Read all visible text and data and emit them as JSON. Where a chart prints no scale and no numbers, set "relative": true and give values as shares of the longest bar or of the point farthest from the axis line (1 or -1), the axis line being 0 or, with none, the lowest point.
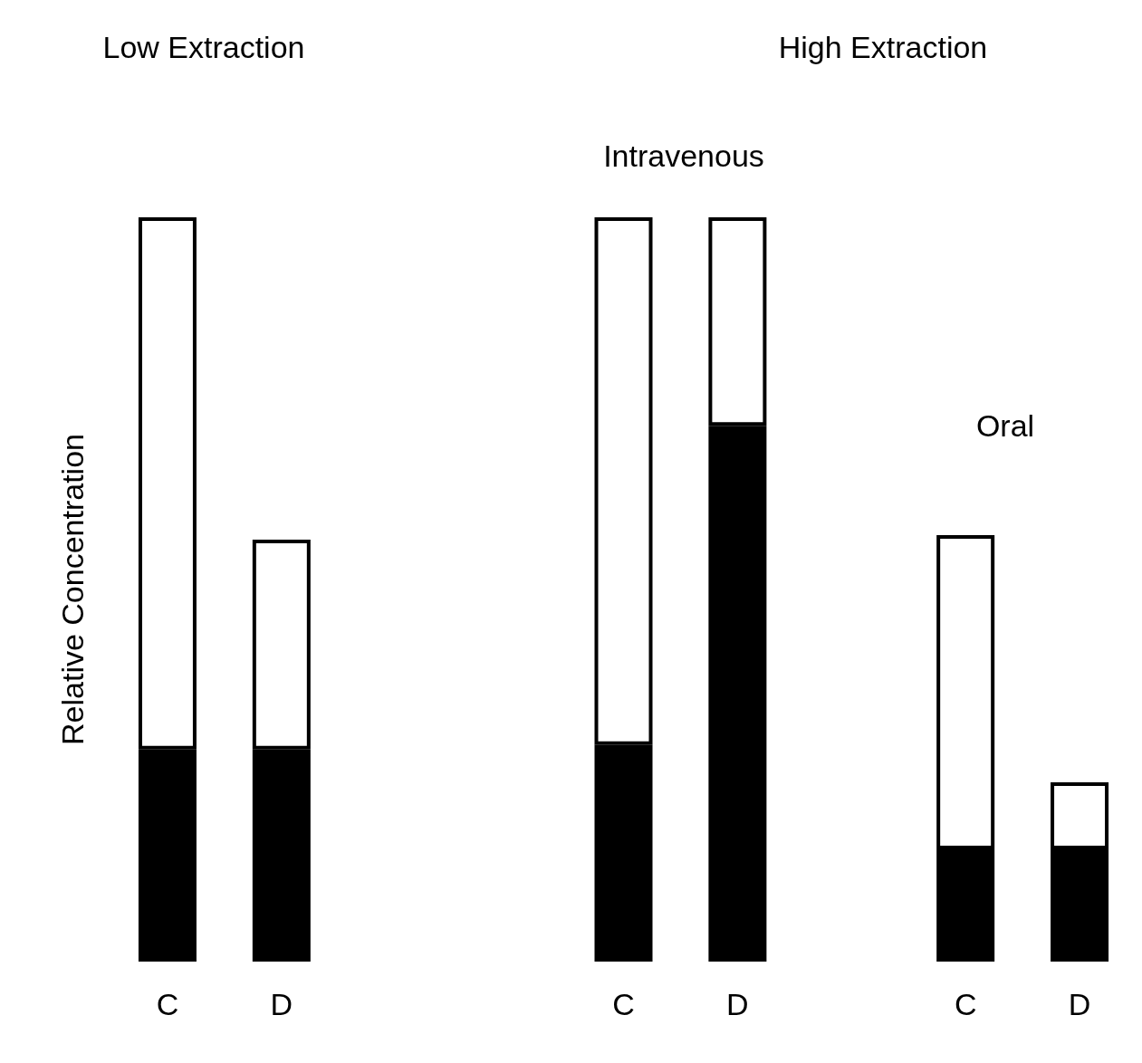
{
  "chart_data": {
    "type": "bar",
    "stacked": true,
    "relative": true,
    "ylabel": "Relative Concentration",
    "categories": [
      "C",
      "D",
      null,
      null,
      "C",
      "D",
      null,
      "C",
      "D"
    ],
    "series": [
      {
        "color": "#000000",
        "values": [
          0.285,
          0.285,
          null,
          null,
          0.291,
          0.72,
          null,
          0.151,
          0.151
        ]
      },
      {
        "color": "#ffffff",
        "values": [
          0.715,
          0.282,
          null,
          null,
          0.709,
          0.28,
          null,
          0.422,
          0.09
        ]
      }
    ],
    "annotations": [
      "Low Extraction",
      "High Extraction",
      "Intravenous",
      "Oral"
    ]
  }
}
